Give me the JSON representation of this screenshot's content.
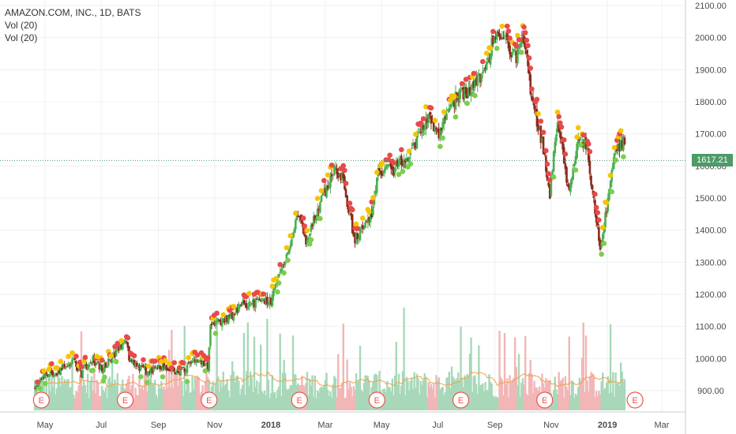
{
  "legend": {
    "symbol": "AMAZON.COM, INC., 1D, BATS",
    "vol1": "Vol (20)",
    "vol2": "Vol (20)"
  },
  "last_price_label": "1617.21",
  "colors": {
    "up": "#26a69a",
    "down": "#ef5350",
    "candle_up": "#4caf50",
    "candle_down": "#8b2a1e",
    "dot_red": "#e84a4a",
    "dot_yellow": "#f5c400",
    "dot_green": "#7cce4e",
    "vol_up": "#a8d8b9",
    "vol_down": "#f2b6b6",
    "vol_ma": "#f0a04b",
    "price_line": "#4c9b68",
    "earnings": "#ef5350"
  },
  "chart_data": {
    "type": "candlestick",
    "title": "AMAZON.COM, INC., 1D, BATS",
    "y_ticks": [
      900,
      1000,
      1100,
      1200,
      1300,
      1400,
      1500,
      1600,
      1700,
      1800,
      1900,
      2000,
      2100
    ],
    "y_tick_labels": [
      "900.00",
      "1000.00",
      "1100.00",
      "1200.00",
      "1300.00",
      "1400.00",
      "1500.00",
      "1600.00",
      "1700.00",
      "1800.00",
      "1900.00",
      "2000.00",
      "2100.00"
    ],
    "ylim": [
      830,
      2110
    ],
    "x_ticks": [
      "May",
      "Jul",
      "Sep",
      "Nov",
      "2018",
      "Mar",
      "May",
      "Jul",
      "Sep",
      "Nov",
      "2019",
      "Mar"
    ],
    "last_price": 1617.21,
    "indicators": [
      "Vol (20)",
      "Vol (20)"
    ],
    "earnings_marker": "E",
    "earnings_months": [
      "Apr 2017",
      "Jul 2017",
      "Oct 2017",
      "Feb 2018",
      "Apr 2018",
      "Jul 2018",
      "Oct 2018",
      "Jan 2019"
    ],
    "close_path": [
      {
        "t": "2017-04-20",
        "v": 905
      },
      {
        "t": "2017-05-01",
        "v": 948
      },
      {
        "t": "2017-05-15",
        "v": 960
      },
      {
        "t": "2017-06-01",
        "v": 993
      },
      {
        "t": "2017-06-09",
        "v": 950
      },
      {
        "t": "2017-06-20",
        "v": 1002
      },
      {
        "t": "2017-07-01",
        "v": 968
      },
      {
        "t": "2017-07-15",
        "v": 1010
      },
      {
        "t": "2017-07-27",
        "v": 1060
      },
      {
        "t": "2017-08-01",
        "v": 990
      },
      {
        "t": "2017-08-20",
        "v": 960
      },
      {
        "t": "2017-09-05",
        "v": 976
      },
      {
        "t": "2017-09-25",
        "v": 955
      },
      {
        "t": "2017-10-10",
        "v": 995
      },
      {
        "t": "2017-10-25",
        "v": 975
      },
      {
        "t": "2017-10-27",
        "v": 1100
      },
      {
        "t": "2017-11-20",
        "v": 1135
      },
      {
        "t": "2017-12-01",
        "v": 1165
      },
      {
        "t": "2017-12-15",
        "v": 1175
      },
      {
        "t": "2018-01-01",
        "v": 1180
      },
      {
        "t": "2018-01-15",
        "v": 1300
      },
      {
        "t": "2018-01-31",
        "v": 1450
      },
      {
        "t": "2018-02-08",
        "v": 1360
      },
      {
        "t": "2018-02-27",
        "v": 1510
      },
      {
        "t": "2018-03-12",
        "v": 1595
      },
      {
        "t": "2018-03-20",
        "v": 1560
      },
      {
        "t": "2018-04-02",
        "v": 1370
      },
      {
        "t": "2018-04-20",
        "v": 1450
      },
      {
        "t": "2018-04-27",
        "v": 1580
      },
      {
        "t": "2018-05-15",
        "v": 1590
      },
      {
        "t": "2018-06-01",
        "v": 1640
      },
      {
        "t": "2018-06-20",
        "v": 1750
      },
      {
        "t": "2018-07-01",
        "v": 1700
      },
      {
        "t": "2018-07-20",
        "v": 1810
      },
      {
        "t": "2018-08-01",
        "v": 1830
      },
      {
        "t": "2018-08-20",
        "v": 1890
      },
      {
        "t": "2018-09-04",
        "v": 2040
      },
      {
        "t": "2018-09-15",
        "v": 1970
      },
      {
        "t": "2018-09-25",
        "v": 1940
      },
      {
        "t": "2018-10-01",
        "v": 2010
      },
      {
        "t": "2018-10-12",
        "v": 1800
      },
      {
        "t": "2018-10-25",
        "v": 1640
      },
      {
        "t": "2018-10-30",
        "v": 1500
      },
      {
        "t": "2018-11-08",
        "v": 1750
      },
      {
        "t": "2018-11-20",
        "v": 1520
      },
      {
        "t": "2018-12-01",
        "v": 1700
      },
      {
        "t": "2018-12-10",
        "v": 1650
      },
      {
        "t": "2018-12-24",
        "v": 1345
      },
      {
        "t": "2019-01-10",
        "v": 1650
      },
      {
        "t": "2019-01-20",
        "v": 1680
      }
    ]
  }
}
